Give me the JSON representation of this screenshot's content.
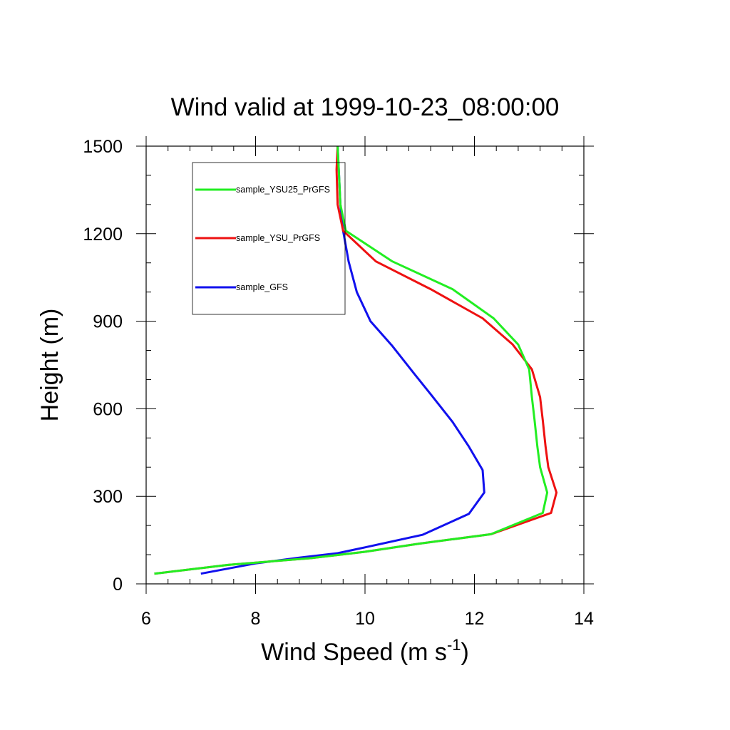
{
  "chart_data": {
    "type": "line",
    "title": "Wind valid at 1999-10-23_08:00:00",
    "xlabel": "Wind Speed (m s",
    "xlabel_sup": "-1",
    "xlabel_end": ")",
    "ylabel": "Height (m)",
    "xlim": [
      6,
      14
    ],
    "ylim": [
      0,
      1500
    ],
    "xticks": [
      6,
      8,
      10,
      12,
      14
    ],
    "yticks": [
      0,
      300,
      600,
      900,
      1200,
      1500
    ],
    "xtick_labels": [
      "6",
      "8",
      "10",
      "12",
      "14"
    ],
    "ytick_labels": [
      "0",
      "300",
      "600",
      "900",
      "1200",
      "1500"
    ],
    "grid": false,
    "legend_position": "top-left",
    "series": [
      {
        "name": "sample_YSU25_PrGFS",
        "color": "#22ee22",
        "points": [
          [
            6.15,
            35
          ],
          [
            7.5,
            65
          ],
          [
            9.0,
            88
          ],
          [
            10.0,
            110
          ],
          [
            11.0,
            138
          ],
          [
            12.3,
            170
          ],
          [
            13.25,
            243
          ],
          [
            13.33,
            313
          ],
          [
            13.2,
            400
          ],
          [
            13.15,
            470
          ],
          [
            13.1,
            560
          ],
          [
            13.05,
            640
          ],
          [
            13.0,
            735
          ],
          [
            12.8,
            820
          ],
          [
            12.35,
            910
          ],
          [
            11.6,
            1010
          ],
          [
            10.5,
            1105
          ],
          [
            9.65,
            1210
          ],
          [
            9.55,
            1300
          ],
          [
            9.52,
            1420
          ],
          [
            9.5,
            1500
          ]
        ]
      },
      {
        "name": "sample_YSU_PrGFS",
        "color": "#ee1111",
        "points": [
          [
            6.15,
            35
          ],
          [
            7.5,
            65
          ],
          [
            9.0,
            88
          ],
          [
            10.0,
            110
          ],
          [
            11.0,
            138
          ],
          [
            12.3,
            170
          ],
          [
            13.4,
            243
          ],
          [
            13.5,
            313
          ],
          [
            13.35,
            400
          ],
          [
            13.3,
            470
          ],
          [
            13.25,
            560
          ],
          [
            13.2,
            640
          ],
          [
            13.05,
            735
          ],
          [
            12.7,
            820
          ],
          [
            12.15,
            910
          ],
          [
            11.2,
            1010
          ],
          [
            10.2,
            1105
          ],
          [
            9.6,
            1210
          ],
          [
            9.5,
            1300
          ],
          [
            9.48,
            1420
          ],
          [
            9.5,
            1500
          ]
        ]
      },
      {
        "name": "sample_GFS",
        "color": "#1111ee",
        "points": [
          [
            7.0,
            35
          ],
          [
            8.0,
            70
          ],
          [
            8.8,
            90
          ],
          [
            9.5,
            105
          ],
          [
            10.0,
            125
          ],
          [
            11.05,
            168
          ],
          [
            11.9,
            240
          ],
          [
            12.18,
            313
          ],
          [
            12.15,
            390
          ],
          [
            11.9,
            470
          ],
          [
            11.6,
            555
          ],
          [
            11.2,
            650
          ],
          [
            10.9,
            720
          ],
          [
            10.5,
            815
          ],
          [
            10.1,
            900
          ],
          [
            9.85,
            1000
          ],
          [
            9.7,
            1105
          ],
          [
            9.6,
            1210
          ],
          [
            9.55,
            1300
          ],
          [
            9.52,
            1420
          ],
          [
            9.5,
            1500
          ]
        ]
      }
    ]
  }
}
